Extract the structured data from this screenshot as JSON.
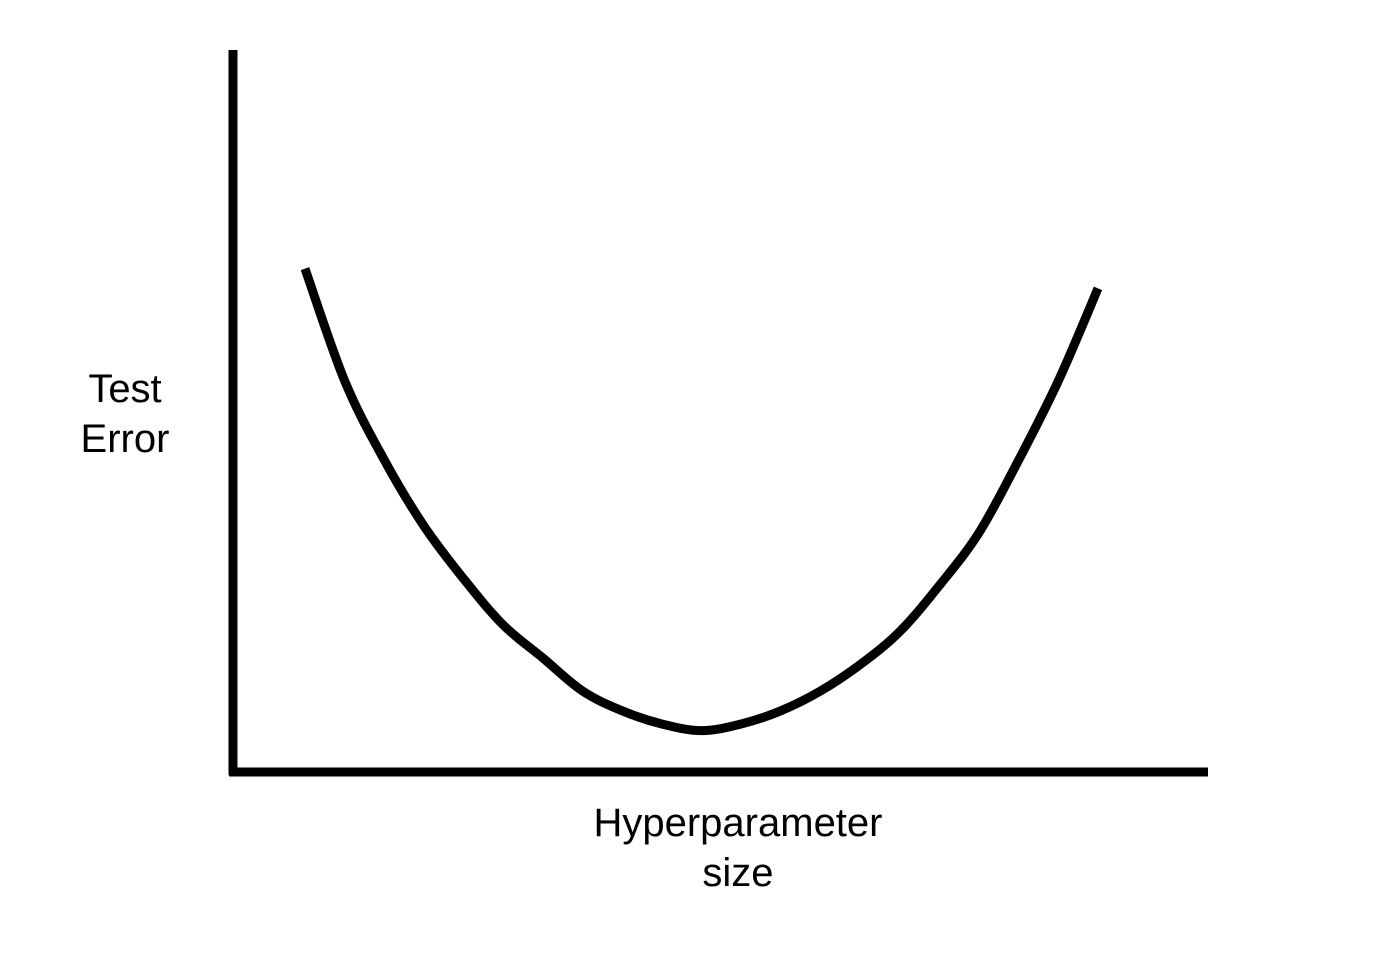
{
  "chart_data": {
    "type": "line",
    "title": "",
    "ylabel_lines": [
      "Test",
      "Error"
    ],
    "xlabel_lines": [
      "Hyperparameter",
      "size"
    ],
    "x_ticks": [],
    "y_ticks": [],
    "grid": false,
    "legend": "none",
    "colors": {
      "curve": "#000000",
      "axes": "#000000",
      "background": "#ffffff"
    },
    "series": [
      {
        "x": [
          0.0,
          0.05,
          0.1,
          0.15,
          0.2,
          0.25,
          0.3,
          0.35,
          0.4,
          0.45,
          0.5,
          0.55,
          0.6,
          0.65,
          0.7,
          0.75,
          0.8,
          0.85,
          0.9,
          0.95,
          1.0
        ],
        "y": [
          0.74,
          0.57,
          0.45,
          0.35,
          0.27,
          0.2,
          0.15,
          0.1,
          0.07,
          0.05,
          0.04,
          0.05,
          0.07,
          0.1,
          0.14,
          0.19,
          0.26,
          0.34,
          0.45,
          0.57,
          0.71
        ]
      }
    ]
  }
}
